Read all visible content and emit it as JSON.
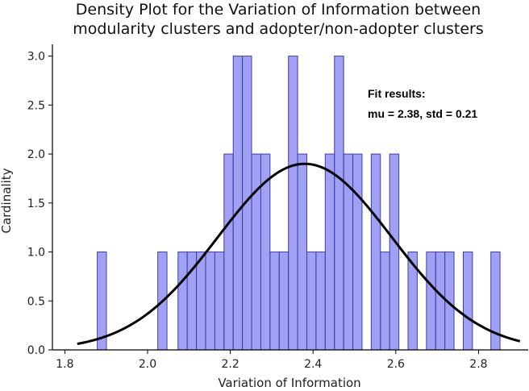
{
  "chart_data": {
    "type": "bar",
    "title": "Density Plot for the Variation of Information between",
    "subtitle": "modularity clusters and adopter/non-adopter clusters",
    "xlabel": "Variation of Information",
    "ylabel": "Cardinality",
    "xlim": [
      1.77,
      2.92
    ],
    "ylim": [
      0,
      3.12
    ],
    "xticks": [
      "1.8",
      "2.0",
      "2.2",
      "2.4",
      "2.6",
      "2.8"
    ],
    "xtick_values": [
      1.8,
      2.0,
      2.2,
      2.4,
      2.6,
      2.8
    ],
    "yticks": [
      "0.0",
      "0.5",
      "1.0",
      "1.5",
      "2.0",
      "2.5",
      "3.0"
    ],
    "ytick_values": [
      0.0,
      0.5,
      1.0,
      1.5,
      2.0,
      2.5,
      3.0
    ],
    "grid": false,
    "bar_color": "#8080f0",
    "bar_edge_color": "#4040a0",
    "curve_color": "#000000",
    "bins": [
      {
        "x0": 1.8784,
        "x1": 1.9006,
        "count": 1
      },
      {
        "x0": 2.0247,
        "x1": 2.0469,
        "count": 1
      },
      {
        "x0": 2.0736,
        "x1": 2.0958,
        "count": 1
      },
      {
        "x0": 2.0958,
        "x1": 2.1181,
        "count": 1
      },
      {
        "x0": 2.1181,
        "x1": 2.1403,
        "count": 1
      },
      {
        "x0": 2.1403,
        "x1": 2.1626,
        "count": 1
      },
      {
        "x0": 2.1626,
        "x1": 2.1848,
        "count": 1
      },
      {
        "x0": 2.1848,
        "x1": 2.207,
        "count": 2
      },
      {
        "x0": 2.207,
        "x1": 2.2293,
        "count": 3
      },
      {
        "x0": 2.2293,
        "x1": 2.2515,
        "count": 3
      },
      {
        "x0": 2.2515,
        "x1": 2.2738,
        "count": 2
      },
      {
        "x0": 2.2738,
        "x1": 2.296,
        "count": 2
      },
      {
        "x0": 2.296,
        "x1": 2.3182,
        "count": 1
      },
      {
        "x0": 2.3182,
        "x1": 2.3405,
        "count": 1
      },
      {
        "x0": 2.3405,
        "x1": 2.3627,
        "count": 3
      },
      {
        "x0": 2.3627,
        "x1": 2.385,
        "count": 2
      },
      {
        "x0": 2.385,
        "x1": 2.4072,
        "count": 1
      },
      {
        "x0": 2.4072,
        "x1": 2.4294,
        "count": 1
      },
      {
        "x0": 2.4294,
        "x1": 2.4517,
        "count": 2
      },
      {
        "x0": 2.4517,
        "x1": 2.4739,
        "count": 3
      },
      {
        "x0": 2.4739,
        "x1": 2.4962,
        "count": 2
      },
      {
        "x0": 2.4962,
        "x1": 2.5184,
        "count": 2
      },
      {
        "x0": 2.5406,
        "x1": 2.5629,
        "count": 2
      },
      {
        "x0": 2.5629,
        "x1": 2.5851,
        "count": 1
      },
      {
        "x0": 2.5851,
        "x1": 2.6074,
        "count": 2
      },
      {
        "x0": 2.6296,
        "x1": 2.6518,
        "count": 1
      },
      {
        "x0": 2.6741,
        "x1": 2.6963,
        "count": 1
      },
      {
        "x0": 2.6963,
        "x1": 2.7186,
        "count": 1
      },
      {
        "x0": 2.7186,
        "x1": 2.7408,
        "count": 1
      },
      {
        "x0": 2.763,
        "x1": 2.7853,
        "count": 1
      },
      {
        "x0": 2.8298,
        "x1": 2.852,
        "count": 1
      }
    ],
    "fit": {
      "mu": 2.38,
      "std": 0.21,
      "peak": 1.9,
      "x_range": [
        1.83,
        2.9
      ]
    },
    "annotation": {
      "line1": "Fit results:",
      "line2": "mu = 2.38,  std = 0.21"
    }
  }
}
